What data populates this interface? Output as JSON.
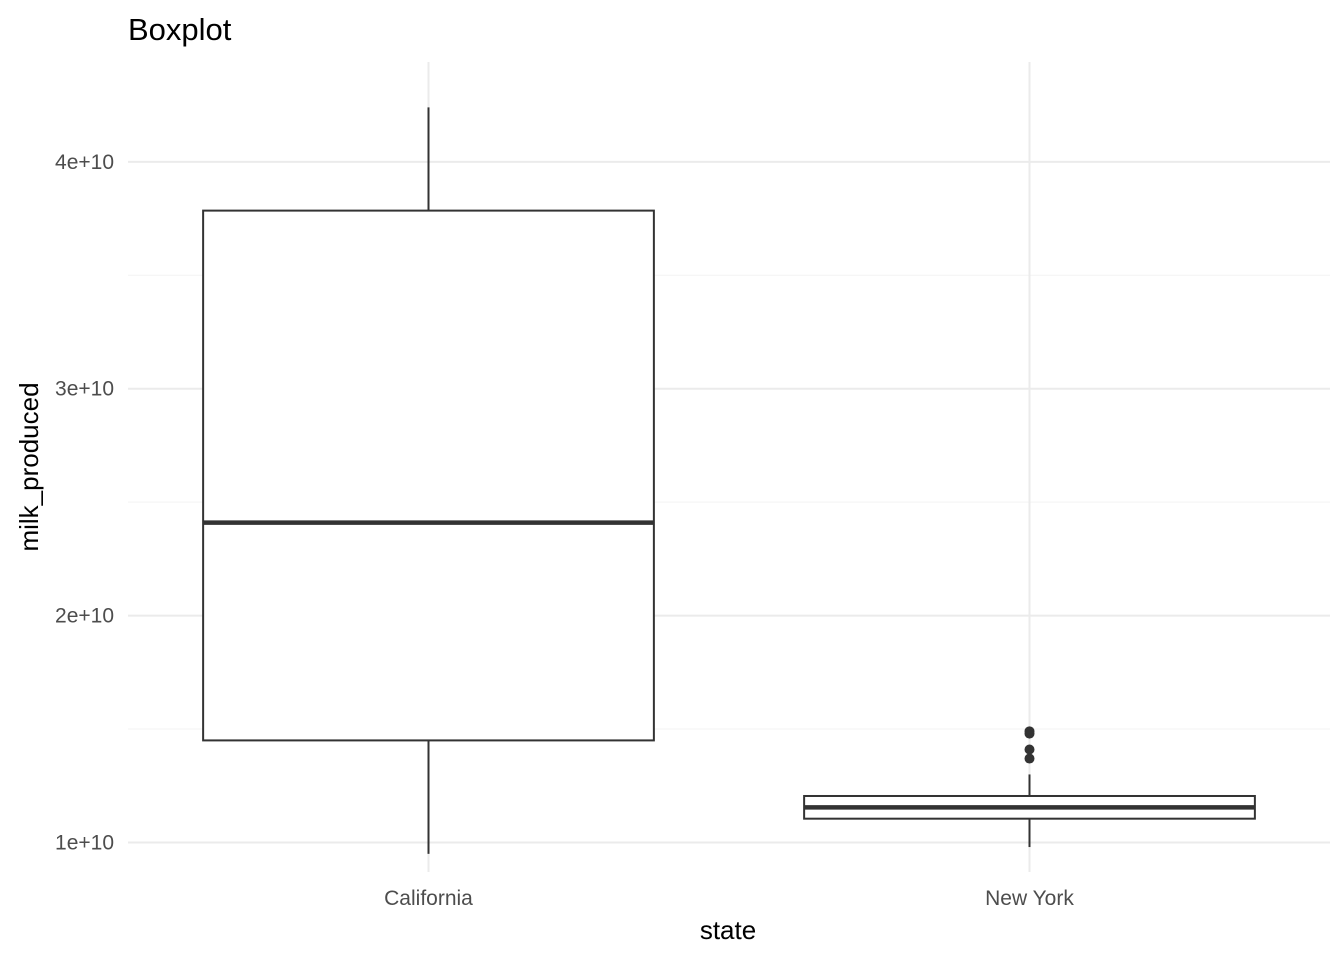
{
  "chart_data": {
    "type": "boxplot",
    "title": "Boxplot",
    "xlabel": "state",
    "ylabel": "milk_produced",
    "ylim": [
      8700000000,
      44400000000
    ],
    "y_ticks": [
      {
        "value": 10000000000,
        "label": "1e+10"
      },
      {
        "value": 20000000000,
        "label": "2e+10"
      },
      {
        "value": 30000000000,
        "label": "3e+10"
      },
      {
        "value": 40000000000,
        "label": "4e+10"
      }
    ],
    "y_minor_ticks": [
      15000000000,
      25000000000,
      35000000000
    ],
    "grid": true,
    "categories": [
      "California",
      "New York"
    ],
    "boxes": [
      {
        "category": "California",
        "whisker_low": 9500000000,
        "q1": 14500000000,
        "median": 24100000000,
        "q3": 37850000000,
        "whisker_high": 42400000000,
        "outliers": []
      },
      {
        "category": "New York",
        "whisker_low": 9800000000,
        "q1": 11050000000,
        "median": 11550000000,
        "q3": 12050000000,
        "whisker_high": 13000000000,
        "outliers": [
          13700000000,
          14100000000,
          14800000000,
          14900000000
        ]
      }
    ]
  }
}
